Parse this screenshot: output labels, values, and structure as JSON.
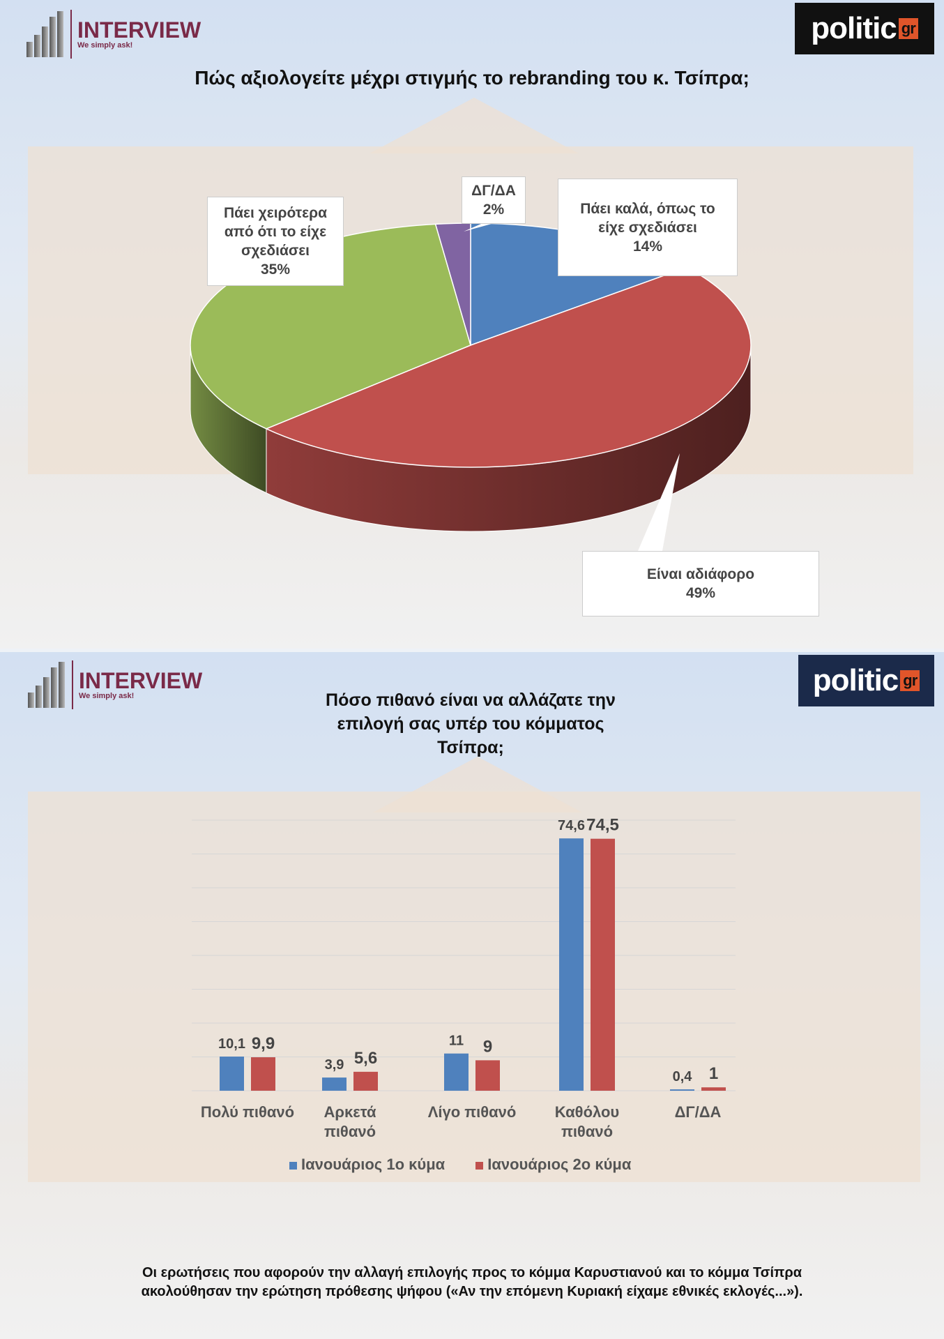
{
  "logos": {
    "interview_name": "INTERVIEW",
    "interview_tagline": "We simply ask!",
    "politic_main": "politic",
    "politic_suffix": "gr"
  },
  "colors": {
    "blue": "#4f81bd",
    "red": "#c0504d",
    "green": "#9bbb59",
    "purple": "#8064a2",
    "brand": "#7a2a48"
  },
  "chart_data": [
    {
      "type": "pie",
      "title": "Πώς αξιολογείτε μέχρι στιγμής το rebranding του κ. Τσίπρα;",
      "slices": [
        {
          "label": "Πάει καλά, όπως το είχε σχεδιάσει",
          "value": 14,
          "display": "14%",
          "color": "#4f81bd"
        },
        {
          "label": "Είναι αδιάφορο",
          "value": 49,
          "display": "49%",
          "color": "#c0504d"
        },
        {
          "label": "Πάει χειρότερα από ότι το είχε σχεδιάσει",
          "value": 35,
          "display": "35%",
          "color": "#9bbb59"
        },
        {
          "label": "ΔΓ/ΔΑ",
          "value": 2,
          "display": "2%",
          "color": "#8064a2"
        }
      ]
    },
    {
      "type": "bar",
      "title": "Πόσο πιθανό είναι να αλλάζατε την επιλογή σας υπέρ του κόμματος Τσίπρα;",
      "categories": [
        "Πολύ πιθανό",
        "Αρκετά πιθανό",
        "Λίγο πιθανό",
        "Καθόλου πιθανό",
        "ΔΓ/ΔΑ"
      ],
      "series": [
        {
          "name": "Ιανουάριος 1ο κύμα",
          "color": "#4f81bd",
          "values": [
            10.1,
            3.9,
            11,
            74.6,
            0.4
          ],
          "labels": [
            "10,1",
            "3,9",
            "11",
            "74,6",
            "0,4"
          ]
        },
        {
          "name": "Ιανουάριος 2ο κύμα",
          "color": "#c0504d",
          "values": [
            9.9,
            5.6,
            9,
            74.5,
            1
          ],
          "labels": [
            "9,9",
            "5,6",
            "9",
            "74,5",
            "1"
          ]
        }
      ],
      "ylim": [
        0,
        80
      ],
      "grid": true,
      "legend": "bottom"
    }
  ],
  "footnote": "Οι ερωτήσεις που αφορούν την αλλαγή επιλογής προς το κόμμα Καρυστιανού και το κόμμα Τσίπρα ακολούθησαν την ερώτηση πρόθεσης ψήφου («Αν την επόμενη Κυριακή είχαμε εθνικές εκλογές...»)."
}
